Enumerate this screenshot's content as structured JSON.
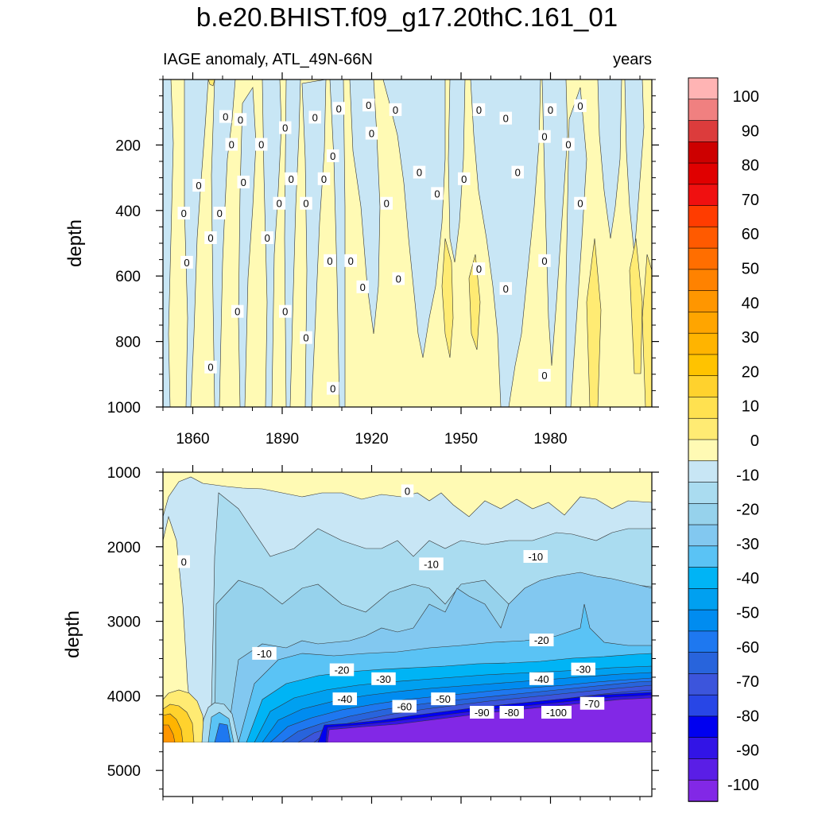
{
  "title": "b.e20.BHIST.f09_g17.20thC.161_01",
  "chart_data": [
    {
      "type": "heatmap",
      "subtitle_left": "IAGE anomaly, ATL_49N-66N",
      "subtitle_right": "years",
      "ylabel": "depth",
      "xlim": [
        1850,
        2014
      ],
      "ylim": [
        0,
        1000
      ],
      "y_inverted": true,
      "x_ticks": [
        1860,
        1890,
        1920,
        1950,
        1980
      ],
      "x_tick_labels": [
        "1860",
        "1890",
        "1920",
        "1950",
        "1980"
      ],
      "y_ticks": [
        200,
        400,
        600,
        800,
        1000
      ],
      "y_tick_labels": [
        "200",
        "400",
        "600",
        "800",
        "1000"
      ],
      "contour_labels": [
        {
          "text": "0",
          "x": 1871,
          "y": 113
        },
        {
          "text": "0",
          "x": 1873,
          "y": 198
        },
        {
          "text": "0",
          "x": 1876,
          "y": 122
        },
        {
          "text": "0",
          "x": 1883,
          "y": 198
        },
        {
          "text": "0",
          "x": 1891,
          "y": 147
        },
        {
          "text": "0",
          "x": 1901,
          "y": 115
        },
        {
          "text": "0",
          "x": 1909,
          "y": 88
        },
        {
          "text": "0",
          "x": 1919,
          "y": 78
        },
        {
          "text": "0",
          "x": 1928,
          "y": 92
        },
        {
          "text": "0",
          "x": 1956,
          "y": 92
        },
        {
          "text": "0",
          "x": 1965,
          "y": 118
        },
        {
          "text": "0",
          "x": 1980,
          "y": 92
        },
        {
          "text": "0",
          "x": 1990,
          "y": 80
        },
        {
          "text": "0",
          "x": 1978,
          "y": 174
        },
        {
          "text": "0",
          "x": 1986,
          "y": 198
        },
        {
          "text": "0",
          "x": 1920,
          "y": 164
        },
        {
          "text": "0",
          "x": 1907,
          "y": 233
        },
        {
          "text": "0",
          "x": 1862,
          "y": 323
        },
        {
          "text": "0",
          "x": 1877,
          "y": 313
        },
        {
          "text": "0",
          "x": 1893,
          "y": 303
        },
        {
          "text": "0",
          "x": 1904,
          "y": 303
        },
        {
          "text": "0",
          "x": 1936,
          "y": 283
        },
        {
          "text": "0",
          "x": 1942,
          "y": 348
        },
        {
          "text": "0",
          "x": 1951,
          "y": 303
        },
        {
          "text": "0",
          "x": 1969,
          "y": 283
        },
        {
          "text": "0",
          "x": 1857,
          "y": 408
        },
        {
          "text": "0",
          "x": 1869,
          "y": 408
        },
        {
          "text": "0",
          "x": 1889,
          "y": 378
        },
        {
          "text": "0",
          "x": 1898,
          "y": 378
        },
        {
          "text": "0",
          "x": 1925,
          "y": 378
        },
        {
          "text": "0",
          "x": 1990,
          "y": 378
        },
        {
          "text": "0",
          "x": 1866,
          "y": 483
        },
        {
          "text": "0",
          "x": 1885,
          "y": 483
        },
        {
          "text": "0",
          "x": 1858,
          "y": 558
        },
        {
          "text": "0",
          "x": 1913,
          "y": 553
        },
        {
          "text": "0",
          "x": 1906,
          "y": 553
        },
        {
          "text": "0",
          "x": 1978,
          "y": 553
        },
        {
          "text": "0",
          "x": 1917,
          "y": 633
        },
        {
          "text": "0",
          "x": 1929,
          "y": 608
        },
        {
          "text": "0",
          "x": 1956,
          "y": 578
        },
        {
          "text": "0",
          "x": 1965,
          "y": 638
        },
        {
          "text": "0",
          "x": 1875,
          "y": 708
        },
        {
          "text": "0",
          "x": 1891,
          "y": 708
        },
        {
          "text": "0",
          "x": 1898,
          "y": 788
        },
        {
          "text": "0",
          "x": 1866,
          "y": 878
        },
        {
          "text": "0",
          "x": 1907,
          "y": 943
        },
        {
          "text": "0",
          "x": 1978,
          "y": 903
        }
      ]
    },
    {
      "type": "heatmap",
      "ylabel": "depth",
      "xlim": [
        1850,
        2014
      ],
      "ylim": [
        1000,
        5350
      ],
      "y_inverted": true,
      "data_bottom": 4600,
      "y_ticks": [
        1000,
        2000,
        3000,
        4000,
        5000
      ],
      "y_tick_labels": [
        "1000",
        "2000",
        "3000",
        "4000",
        "5000"
      ],
      "contour_labels": [
        {
          "text": "0",
          "x": 1857,
          "y": 2200
        },
        {
          "text": "0",
          "x": 1932,
          "y": 1250
        },
        {
          "text": "-10",
          "x": 1940,
          "y": 2230
        },
        {
          "text": "-10",
          "x": 1975,
          "y": 2130
        },
        {
          "text": "-10",
          "x": 1884,
          "y": 3430
        },
        {
          "text": "-20",
          "x": 1910,
          "y": 3650
        },
        {
          "text": "-20",
          "x": 1977,
          "y": 3250
        },
        {
          "text": "-30",
          "x": 1924,
          "y": 3770
        },
        {
          "text": "-30",
          "x": 1991,
          "y": 3640
        },
        {
          "text": "-40",
          "x": 1911,
          "y": 4040
        },
        {
          "text": "-40",
          "x": 1977,
          "y": 3770
        },
        {
          "text": "-50",
          "x": 1944,
          "y": 4040
        },
        {
          "text": "-60",
          "x": 1931,
          "y": 4140
        },
        {
          "text": "-70",
          "x": 1994,
          "y": 4100
        },
        {
          "text": "-80",
          "x": 1967,
          "y": 4220
        },
        {
          "text": "-90",
          "x": 1957,
          "y": 4220
        },
        {
          "text": "-100",
          "x": 1982,
          "y": 4220
        }
      ]
    }
  ],
  "colorbar": {
    "colors": [
      "#ffb4b4",
      "#f08080",
      "#dc3c3c",
      "#cd0000",
      "#e00000",
      "#f01010",
      "#ff3c00",
      "#ff5a00",
      "#ff6e00",
      "#ff8200",
      "#ff9600",
      "#ffa500",
      "#ffb400",
      "#ffc300",
      "#ffd22d",
      "#ffe150",
      "#ffeb73",
      "#fffab4",
      "#c8e6f5",
      "#aadcf0",
      "#96d2ec",
      "#82c8f0",
      "#5ac3f5",
      "#00b4f5",
      "#00a0f0",
      "#008cf0",
      "#1e78f0",
      "#2864dc",
      "#3c55dc",
      "#2846e6",
      "#0000f0",
      "#3214e6",
      "#5a1ee6",
      "#8228e6"
    ],
    "labels": [
      "100",
      "90",
      "80",
      "70",
      "60",
      "50",
      "40",
      "30",
      "20",
      "10",
      "0",
      "-10",
      "-20",
      "-30",
      "-40",
      "-50",
      "-60",
      "-70",
      "-80",
      "-90",
      "-100"
    ]
  }
}
